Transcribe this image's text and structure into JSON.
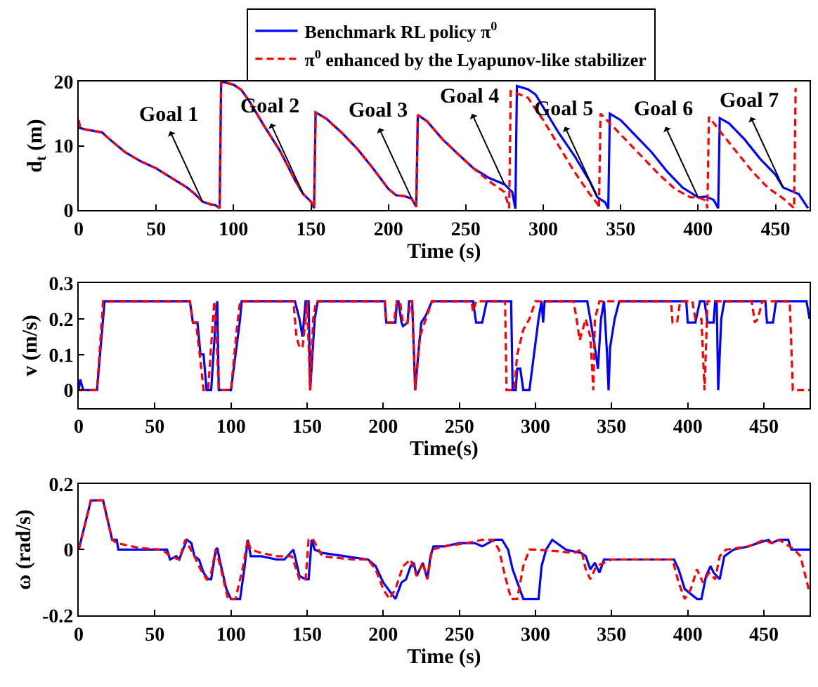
{
  "chart_data": [
    {
      "type": "line",
      "xlabel": "Time (s)",
      "ylabel": "d$_{t}$ (m)",
      "xlim": [
        0,
        472
      ],
      "xticks": [
        0,
        50,
        100,
        150,
        200,
        250,
        300,
        350,
        400,
        450
      ],
      "ylim": [
        0,
        20
      ],
      "yticks": [
        0,
        10,
        20
      ],
      "legend": "top",
      "annotations": [
        {
          "text": "Goal 1",
          "x": 80,
          "y": 1.3
        },
        {
          "text": "Goal 2",
          "x": 145,
          "y": 2.5
        },
        {
          "text": "Goal 3",
          "x": 215,
          "y": 1.8
        },
        {
          "text": "Goal 4",
          "x": 275,
          "y": 4
        },
        {
          "text": "Goal 5",
          "x": 335,
          "y": 2
        },
        {
          "text": "Goal 6",
          "x": 400,
          "y": 2
        },
        {
          "text": "Goal 7",
          "x": 455,
          "y": 3.5
        }
      ],
      "series": [
        {
          "name": "Benchmark RL policy π$^{0}$",
          "color": "#0000ff",
          "line_style": "solid",
          "x": [
            0,
            5,
            15,
            20,
            30,
            40,
            50,
            60,
            70,
            75,
            80,
            85,
            88,
            91,
            92,
            100,
            105,
            110,
            120,
            130,
            140,
            145,
            150,
            152,
            153,
            160,
            170,
            180,
            190,
            200,
            205,
            210,
            215,
            218,
            219,
            225,
            235,
            245,
            255,
            265,
            275,
            280,
            282,
            283,
            290,
            295,
            300,
            310,
            320,
            330,
            335,
            340,
            342,
            343,
            350,
            360,
            370,
            380,
            390,
            400,
            405,
            410,
            413,
            414,
            420,
            430,
            440,
            450,
            455,
            465,
            471
          ],
          "values": [
            12.8,
            12.5,
            12.1,
            11,
            9,
            7.6,
            6.5,
            5,
            3.5,
            2.5,
            1.3,
            0.9,
            0.8,
            0.3,
            20,
            19.5,
            18.7,
            17,
            13,
            9.2,
            4.5,
            2.5,
            1.3,
            0.3,
            15.2,
            14.2,
            12,
            9.5,
            6.5,
            3.3,
            2.3,
            2.2,
            1.8,
            0.5,
            14.8,
            13.8,
            11,
            8.7,
            6.5,
            5,
            4,
            2.8,
            0.2,
            19.3,
            18.8,
            18,
            16,
            12,
            8.5,
            4.5,
            2,
            1.2,
            0.2,
            15,
            14,
            11.5,
            9,
            6,
            3.5,
            2,
            2.1,
            1.6,
            0.3,
            14.3,
            13.5,
            11,
            8,
            5.5,
            3.5,
            2.5,
            0.3
          ]
        },
        {
          "name": "π$^{0}$ enhanced by the Lyapunov-like stabilizer",
          "color": "#ff0000",
          "line_style": "dashed",
          "x": [
            0,
            1,
            5,
            15,
            20,
            30,
            40,
            50,
            60,
            70,
            75,
            80,
            85,
            88,
            91,
            92,
            100,
            105,
            110,
            120,
            130,
            140,
            145,
            150,
            152,
            153,
            160,
            170,
            180,
            190,
            200,
            205,
            210,
            215,
            218,
            219,
            225,
            235,
            245,
            255,
            265,
            275,
            278,
            279,
            290,
            300,
            310,
            320,
            330,
            335,
            336,
            337,
            345,
            355,
            365,
            375,
            385,
            395,
            400,
            405,
            406,
            407,
            415,
            425,
            435,
            445,
            455,
            462,
            463
          ],
          "values": [
            14,
            12.8,
            12.5,
            12.1,
            11,
            9,
            7.6,
            6.5,
            5,
            3.5,
            2.5,
            1.3,
            0.9,
            0.8,
            0.3,
            20,
            19.5,
            18.7,
            17,
            13,
            9.2,
            4.5,
            2.5,
            1.3,
            0.3,
            15.2,
            14.2,
            12,
            9.5,
            6.5,
            3.3,
            2.3,
            2.2,
            1.8,
            0.5,
            14.8,
            13.8,
            11,
            8.7,
            6.5,
            4.5,
            2.8,
            0.3,
            18.5,
            17.5,
            14,
            10,
            6,
            2.5,
            1,
            0.3,
            15,
            13,
            10.5,
            8,
            5.5,
            3.3,
            2,
            2,
            1.5,
            0.3,
            14.5,
            12,
            9,
            6,
            3.5,
            1.8,
            0.3,
            19
          ]
        }
      ]
    },
    {
      "type": "line",
      "xlabel": "Time(s)",
      "ylabel": "v (m/s)",
      "xlim": [
        0,
        480
      ],
      "xticks": [
        0,
        50,
        100,
        150,
        200,
        250,
        300,
        350,
        400,
        450
      ],
      "ylim": [
        -0.05,
        0.3
      ],
      "yticks": [
        0,
        0.1,
        0.2,
        0.3
      ],
      "series": [
        {
          "color": "#0000ff",
          "line_style": "solid",
          "x": [
            0,
            1,
            3,
            12,
            17,
            73,
            75,
            78,
            80,
            82,
            84,
            87,
            90,
            91,
            92,
            100,
            106,
            107,
            142,
            145,
            147,
            149,
            151,
            152,
            155,
            157,
            201,
            202,
            208,
            209,
            210,
            212,
            213,
            216,
            217,
            219,
            221,
            223,
            225,
            228,
            232,
            259,
            261,
            265,
            268,
            284,
            285,
            287,
            288,
            290,
            292,
            296,
            299,
            302,
            304,
            305,
            306,
            334,
            336,
            339,
            341,
            343,
            345,
            347,
            348,
            349,
            352,
            355,
            399,
            400,
            405,
            408,
            411,
            413,
            417,
            418,
            419,
            420,
            422,
            424,
            451,
            452,
            456,
            458,
            478,
            480
          ],
          "values": [
            0,
            0.03,
            0,
            0,
            0.25,
            0.25,
            0.19,
            0.19,
            0.1,
            0.1,
            0,
            0,
            0.2,
            0.25,
            0,
            0,
            0.2,
            0.25,
            0.25,
            0.2,
            0.15,
            0.25,
            0.25,
            0,
            0.2,
            0.25,
            0.25,
            0.19,
            0.19,
            0.25,
            0.25,
            0.19,
            0.18,
            0.19,
            0.25,
            0.25,
            0,
            0.1,
            0.19,
            0.21,
            0.25,
            0.25,
            0.19,
            0.19,
            0.25,
            0.25,
            0,
            0,
            0.06,
            0.06,
            0,
            0,
            0.1,
            0.2,
            0.25,
            0.19,
            0.25,
            0.25,
            0.2,
            0.12,
            0.06,
            0.2,
            0.25,
            0.1,
            0,
            0.12,
            0.2,
            0.25,
            0.25,
            0.19,
            0.19,
            0.25,
            0.25,
            0.19,
            0.19,
            0.25,
            0.25,
            0,
            0.2,
            0.25,
            0.25,
            0.19,
            0.19,
            0.25,
            0.25,
            0.2
          ]
        },
        {
          "color": "#ff0000",
          "line_style": "dashed",
          "x": [
            0,
            12,
            16,
            73,
            75,
            77,
            80,
            82,
            85,
            89,
            90,
            92,
            100,
            104,
            106,
            141,
            143,
            145,
            147,
            149,
            150,
            152,
            154,
            156,
            201,
            202,
            207,
            209,
            211,
            213,
            216,
            218,
            219,
            221,
            224,
            228,
            232,
            258,
            259,
            261,
            280,
            281,
            286,
            288,
            292,
            296,
            300,
            325,
            327,
            329,
            333,
            336,
            338,
            339,
            342,
            389,
            390,
            393,
            395,
            403,
            405,
            409,
            411,
            413,
            442,
            444,
            446,
            449,
            467,
            469,
            480
          ],
          "values": [
            0,
            0,
            0.25,
            0.25,
            0.19,
            0.19,
            0.08,
            0,
            0,
            0.25,
            0.2,
            0,
            0,
            0.18,
            0.25,
            0.25,
            0.15,
            0.12,
            0.12,
            0.2,
            0.25,
            0,
            0.2,
            0.25,
            0.25,
            0.19,
            0.19,
            0.25,
            0.25,
            0.19,
            0.19,
            0.25,
            0.25,
            0,
            0.15,
            0.2,
            0.25,
            0.25,
            0.22,
            0.25,
            0.25,
            0,
            0,
            0.1,
            0.17,
            0.2,
            0.25,
            0.25,
            0.2,
            0.14,
            0.2,
            0.15,
            0,
            0.2,
            0.25,
            0.25,
            0.19,
            0.19,
            0.25,
            0.25,
            0.2,
            0.2,
            0,
            0.25,
            0.25,
            0.19,
            0.2,
            0.25,
            0.25,
            0,
            0
          ]
        }
      ]
    },
    {
      "type": "line",
      "xlabel": "Time (s)",
      "ylabel": "ω (rad/s)",
      "xlim": [
        0,
        480
      ],
      "xticks": [
        0,
        50,
        100,
        150,
        200,
        250,
        300,
        350,
        400,
        450
      ],
      "ylim": [
        -0.2,
        0.2
      ],
      "yticks": [
        -0.2,
        0,
        0.2
      ],
      "series": [
        {
          "color": "#0000ff",
          "line_style": "solid",
          "x": [
            0,
            8,
            16,
            22,
            25,
            26,
            40,
            58,
            60,
            64,
            66,
            71,
            74,
            76,
            79,
            82,
            85,
            87,
            90,
            91,
            93,
            97,
            100,
            106,
            109,
            111,
            113,
            120,
            130,
            135,
            141,
            143,
            145,
            149,
            151,
            153,
            155,
            160,
            175,
            190,
            195,
            200,
            208,
            212,
            215,
            218,
            220,
            222,
            224,
            226,
            229,
            231,
            233,
            240,
            250,
            260,
            265,
            273,
            278,
            282,
            285,
            292,
            302,
            304,
            307,
            311,
            320,
            330,
            333,
            336,
            339,
            342,
            345,
            350,
            370,
            391,
            394,
            398,
            406,
            409,
            412,
            415,
            417,
            421,
            424,
            430,
            440,
            446,
            453,
            455,
            460,
            466,
            468,
            480
          ],
          "values": [
            0,
            0.15,
            0.15,
            0.03,
            0.03,
            0,
            0,
            0,
            -0.03,
            -0.02,
            -0.03,
            0.03,
            0.02,
            -0.02,
            -0.03,
            -0.07,
            -0.09,
            -0.09,
            0,
            0.005,
            -0.04,
            -0.12,
            -0.15,
            -0.15,
            -0.05,
            0.03,
            -0.02,
            -0.02,
            -0.03,
            -0.03,
            0,
            -0.04,
            -0.08,
            -0.09,
            -0.09,
            0.03,
            0,
            -0.01,
            -0.02,
            -0.03,
            -0.05,
            -0.1,
            -0.15,
            -0.1,
            -0.09,
            -0.05,
            -0.04,
            -0.08,
            -0.06,
            -0.04,
            -0.09,
            -0.02,
            0.01,
            0.01,
            0.02,
            0.02,
            0.01,
            0.03,
            0.03,
            0,
            -0.06,
            -0.15,
            -0.15,
            -0.05,
            0,
            0.03,
            0,
            -0.01,
            -0.02,
            -0.06,
            -0.04,
            -0.07,
            -0.03,
            -0.03,
            -0.03,
            -0.03,
            -0.06,
            -0.12,
            -0.15,
            -0.15,
            -0.08,
            -0.05,
            -0.07,
            -0.09,
            -0.02,
            0,
            0.01,
            0.02,
            0.03,
            0.02,
            0.03,
            0.03,
            0,
            0
          ]
        },
        {
          "color": "#ff0000",
          "line_style": "dashed",
          "x": [
            0,
            8,
            16,
            22,
            25,
            40,
            55,
            60,
            66,
            70,
            76,
            80,
            84,
            87,
            90,
            93,
            98,
            103,
            108,
            111,
            113,
            120,
            130,
            140,
            145,
            149,
            151,
            154,
            160,
            180,
            190,
            195,
            200,
            204,
            208,
            213,
            218,
            222,
            226,
            229,
            232,
            240,
            255,
            265,
            272,
            276,
            280,
            284,
            288,
            292,
            296,
            300,
            315,
            325,
            330,
            333,
            336,
            340,
            345,
            350,
            390,
            394,
            398,
            402,
            406,
            410,
            414,
            418,
            421,
            425,
            440,
            450,
            455,
            460,
            470,
            474,
            480
          ],
          "values": [
            0,
            0.15,
            0.15,
            0.03,
            0.02,
            0.005,
            0,
            -0.02,
            -0.03,
            0.03,
            -0.02,
            -0.06,
            -0.09,
            -0.07,
            0,
            -0.05,
            -0.15,
            -0.15,
            -0.05,
            0.03,
            0,
            -0.01,
            -0.02,
            -0.02,
            -0.09,
            -0.09,
            0.03,
            0.03,
            -0.02,
            -0.03,
            -0.03,
            -0.06,
            -0.12,
            -0.15,
            -0.12,
            -0.05,
            -0.03,
            -0.08,
            -0.04,
            -0.09,
            0,
            0.01,
            0.02,
            0.03,
            0.03,
            0,
            -0.08,
            -0.15,
            -0.15,
            -0.05,
            0,
            0,
            -0.005,
            -0.01,
            0,
            -0.06,
            -0.09,
            -0.05,
            -0.04,
            -0.03,
            -0.03,
            -0.1,
            -0.15,
            -0.12,
            -0.06,
            -0.1,
            -0.07,
            -0.09,
            -0.02,
            0,
            0.01,
            0.03,
            0.02,
            0.03,
            0,
            -0.02,
            -0.13
          ]
        }
      ]
    }
  ]
}
